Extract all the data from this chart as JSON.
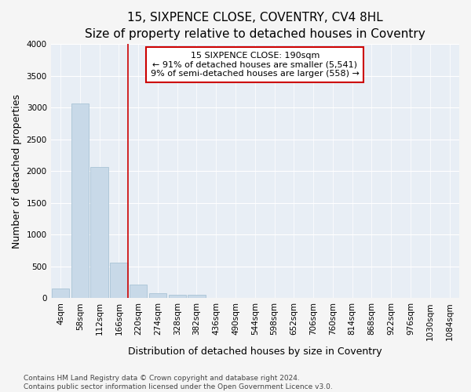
{
  "title": "15, SIXPENCE CLOSE, COVENTRY, CV4 8HL",
  "subtitle": "Size of property relative to detached houses in Coventry",
  "xlabel": "Distribution of detached houses by size in Coventry",
  "ylabel": "Number of detached properties",
  "bar_labels": [
    "4sqm",
    "58sqm",
    "112sqm",
    "166sqm",
    "220sqm",
    "274sqm",
    "328sqm",
    "382sqm",
    "436sqm",
    "490sqm",
    "544sqm",
    "598sqm",
    "652sqm",
    "706sqm",
    "760sqm",
    "814sqm",
    "868sqm",
    "922sqm",
    "976sqm",
    "1030sqm",
    "1084sqm"
  ],
  "bar_heights": [
    150,
    3060,
    2060,
    560,
    210,
    75,
    50,
    50,
    0,
    0,
    0,
    0,
    0,
    0,
    0,
    0,
    0,
    0,
    0,
    0,
    0
  ],
  "bar_color": "#c8d9e8",
  "bar_edgecolor": "#a0bdd0",
  "vline_x": 3.45,
  "vline_color": "#cc0000",
  "annotation_line1": "15 SIXPENCE CLOSE: 190sqm",
  "annotation_line2": "← 91% of detached houses are smaller (5,541)",
  "annotation_line3": "9% of semi-detached houses are larger (558) →",
  "annotation_box_edgecolor": "#cc0000",
  "ylim": [
    0,
    4000
  ],
  "yticks": [
    0,
    500,
    1000,
    1500,
    2000,
    2500,
    3000,
    3500,
    4000
  ],
  "footnote1": "Contains HM Land Registry data © Crown copyright and database right 2024.",
  "footnote2": "Contains public sector information licensed under the Open Government Licence v3.0.",
  "fig_facecolor": "#f5f5f5",
  "plot_facecolor": "#e8eef5",
  "grid_color": "#ffffff",
  "title_fontsize": 11,
  "subtitle_fontsize": 9.5,
  "axis_label_fontsize": 9,
  "tick_fontsize": 7.5,
  "annotation_fontsize": 8,
  "footnote_fontsize": 6.5
}
